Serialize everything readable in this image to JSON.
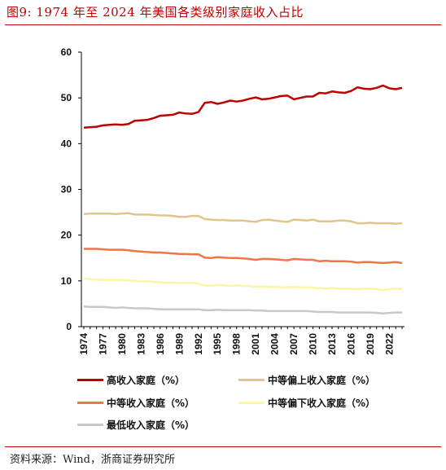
{
  "header": {
    "title": "图9:   1974 年至 2024 年美国各类级别家庭收入占比"
  },
  "footer": {
    "source": "资料来源：Wind，浙商证券研究所"
  },
  "chart_data": {
    "type": "line",
    "ylim": [
      0,
      60
    ],
    "yticks": [
      0,
      10,
      20,
      30,
      40,
      50,
      60
    ],
    "xlim": [
      1974,
      2024
    ],
    "xticks": [
      "1974",
      "1977",
      "1980",
      "1983",
      "1986",
      "1989",
      "1992",
      "1995",
      "1998",
      "2001",
      "2004",
      "2007",
      "2010",
      "2013",
      "2016",
      "2019",
      "2022"
    ],
    "grid": false,
    "legend": "bottom",
    "x": [
      1974,
      1975,
      1976,
      1977,
      1978,
      1979,
      1980,
      1981,
      1982,
      1983,
      1984,
      1985,
      1986,
      1987,
      1988,
      1989,
      1990,
      1991,
      1992,
      1993,
      1994,
      1995,
      1996,
      1997,
      1998,
      1999,
      2000,
      2001,
      2002,
      2003,
      2004,
      2005,
      2006,
      2007,
      2008,
      2009,
      2010,
      2011,
      2012,
      2013,
      2014,
      2015,
      2016,
      2017,
      2018,
      2019,
      2020,
      2021,
      2022,
      2023,
      2024
    ],
    "series": [
      {
        "name": "高收入家庭（%）",
        "color": "#c00000",
        "values": [
          43.5,
          43.6,
          43.7,
          44.0,
          44.1,
          44.2,
          44.1,
          44.3,
          45.0,
          45.1,
          45.2,
          45.6,
          46.1,
          46.2,
          46.3,
          46.8,
          46.6,
          46.5,
          46.9,
          48.9,
          49.1,
          48.7,
          49.0,
          49.4,
          49.2,
          49.4,
          49.8,
          50.1,
          49.7,
          49.8,
          50.1,
          50.4,
          50.5,
          49.7,
          50.0,
          50.3,
          50.3,
          51.1,
          51.0,
          51.4,
          51.2,
          51.1,
          51.5,
          52.3,
          52.0,
          51.9,
          52.2,
          52.7,
          52.1,
          51.9,
          52.2
        ]
      },
      {
        "name": "中等偏上收入家庭（%）",
        "color": "#e2c58a",
        "values": [
          24.6,
          24.7,
          24.7,
          24.7,
          24.7,
          24.6,
          24.7,
          24.8,
          24.5,
          24.5,
          24.5,
          24.4,
          24.3,
          24.3,
          24.2,
          24.0,
          24.0,
          24.2,
          24.2,
          23.5,
          23.4,
          23.3,
          23.3,
          23.2,
          23.2,
          23.2,
          23.0,
          22.9,
          23.3,
          23.4,
          23.2,
          23.0,
          22.9,
          23.4,
          23.3,
          23.2,
          23.4,
          23.0,
          23.0,
          23.0,
          23.2,
          23.2,
          23.0,
          22.6,
          22.6,
          22.7,
          22.6,
          22.6,
          22.6,
          22.5,
          22.6
        ]
      },
      {
        "name": "中等收入家庭（%）",
        "color": "#f0754a",
        "values": [
          17.0,
          17.0,
          17.0,
          16.9,
          16.8,
          16.8,
          16.8,
          16.7,
          16.5,
          16.4,
          16.3,
          16.2,
          16.2,
          16.1,
          16.0,
          15.9,
          15.9,
          15.8,
          15.8,
          15.1,
          15.0,
          15.2,
          15.1,
          15.0,
          15.0,
          14.9,
          14.8,
          14.6,
          14.8,
          14.8,
          14.7,
          14.6,
          14.5,
          14.8,
          14.7,
          14.6,
          14.6,
          14.3,
          14.4,
          14.3,
          14.3,
          14.3,
          14.2,
          14.0,
          14.1,
          14.1,
          14.0,
          13.9,
          14.0,
          14.1,
          13.9
        ]
      },
      {
        "name": "中等偏下收入家庭（%）",
        "color": "#fdf5a6",
        "values": [
          10.6,
          10.4,
          10.3,
          10.2,
          10.2,
          10.2,
          10.2,
          10.1,
          10.0,
          9.9,
          9.9,
          9.8,
          9.7,
          9.6,
          9.6,
          9.5,
          9.6,
          9.6,
          9.4,
          9.0,
          8.9,
          9.1,
          9.0,
          8.9,
          9.0,
          8.9,
          8.9,
          8.7,
          8.8,
          8.7,
          8.7,
          8.6,
          8.6,
          8.7,
          8.6,
          8.6,
          8.5,
          8.4,
          8.3,
          8.4,
          8.3,
          8.3,
          8.3,
          8.2,
          8.3,
          8.3,
          8.2,
          8.0,
          8.2,
          8.3,
          8.2
        ]
      },
      {
        "name": "最低收入家庭（%）",
        "color": "#c8c8c8",
        "values": [
          4.4,
          4.3,
          4.3,
          4.3,
          4.2,
          4.1,
          4.2,
          4.1,
          4.0,
          4.0,
          4.0,
          3.9,
          3.8,
          3.8,
          3.8,
          3.8,
          3.8,
          3.8,
          3.8,
          3.6,
          3.6,
          3.7,
          3.6,
          3.6,
          3.6,
          3.6,
          3.6,
          3.5,
          3.5,
          3.4,
          3.4,
          3.4,
          3.4,
          3.4,
          3.4,
          3.4,
          3.3,
          3.2,
          3.2,
          3.2,
          3.1,
          3.1,
          3.1,
          3.1,
          3.1,
          3.1,
          3.0,
          2.9,
          3.0,
          3.1,
          3.1
        ]
      }
    ]
  }
}
